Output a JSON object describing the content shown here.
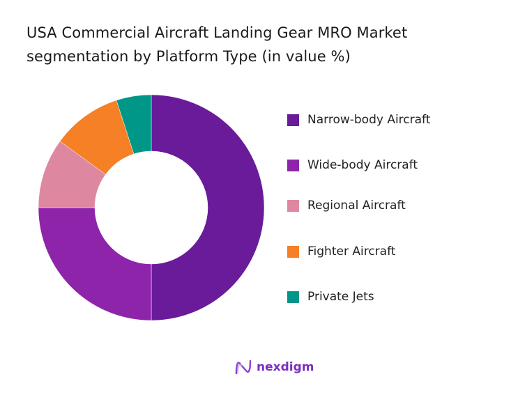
{
  "chart_data": {
    "type": "pie",
    "title": "USA Commercial Aircraft Landing Gear MRO Market segmentation by Platform Type (in value %)",
    "title_lines": [
      "USA Commercial Aircraft Landing Gear MRO Market",
      "segmentation by Platform Type (in value %)"
    ],
    "donut": true,
    "legend_position": "right",
    "categories": [
      "Narrow-body Aircraft",
      "Wide-body Aircraft",
      "Regional Aircraft",
      "Fighter Aircraft",
      "Private Jets"
    ],
    "values": [
      50,
      25,
      10,
      10,
      5
    ],
    "colors": [
      "#6a1b9a",
      "#8e24aa",
      "#de87a0",
      "#f58025",
      "#009688"
    ]
  },
  "brand": {
    "name": "nexdigm",
    "color": "#7b2fbf"
  }
}
